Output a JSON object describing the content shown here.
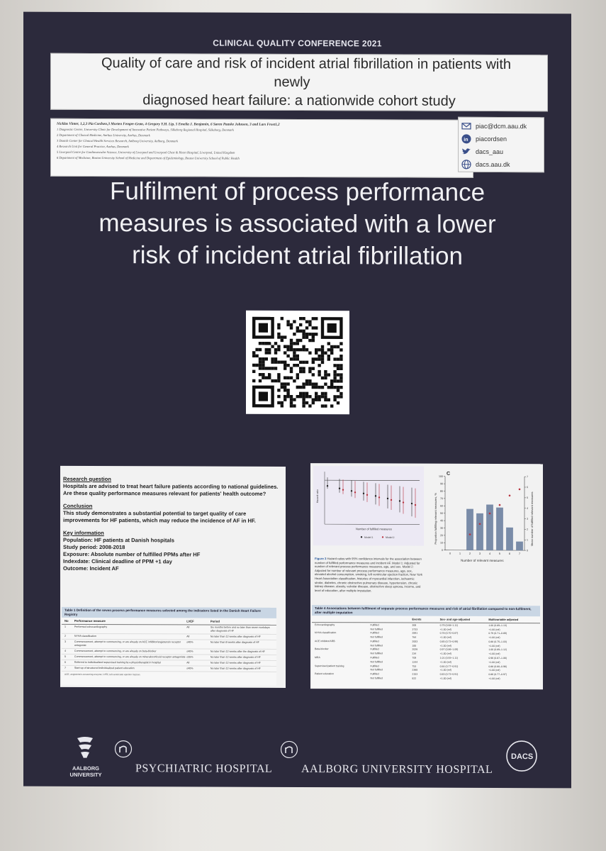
{
  "poster": {
    "conference": "CLINICAL QUALITY CONFERENCE 2021",
    "title_line1": "Quality of care and risk of incident atrial fibrillation in patients with newly",
    "title_line2": "diagnosed heart failure: a nationwide cohort study",
    "authors": "Nicklas Vinter, 1,2,3 Pia Cordsen,3 Morten Fenger-Grøn, 4 Gregory Y.H. Lip, 5 Emelia J. Benjamin, 6 Søren Paaske Johnsen, 3 and Lars Frost1,2",
    "affiliations": [
      "1 Diagnostic Centre, University Clinic for Development of Innovative Patient Pathways, Silkeborg Regional Hospital, Silkeborg, Denmark",
      "2 Department of Clinical Medicine, Aarhus University, Aarhus, Denmark",
      "3 Danish Center for Clinical Health Services Research, Aalborg University, Aalborg, Denmark",
      "4 Research Unit for General Practice, Aarhus, Denmark",
      "5 Liverpool Centre for Cardiovascular Science, University of Liverpool and Liverpool Chest & Heart Hospital, Liverpool, United Kingdom",
      "6 Department of Medicine, Boston University School of Medicine and Department of Epidemiology, Boston University School of Public Health"
    ],
    "contacts": [
      {
        "icon": "email-icon",
        "text": "piac@dcm.aau.dk"
      },
      {
        "icon": "linkedin-icon",
        "text": "piacordsen"
      },
      {
        "icon": "twitter-icon",
        "text": "dacs_aau"
      },
      {
        "icon": "globe-icon",
        "text": "dacs.aau.dk"
      }
    ],
    "main_claim": [
      "Fulfilment of process performance",
      "measures is associated with a lower",
      "risk of incident atrial fibrillation"
    ],
    "left_panel": {
      "research_question_heading": "Research question",
      "research_question": "Hospitals are advised to treat heart failure patients according to national guidelines. Are these quality performance measures relevant for patients' health outcome?",
      "conclusion_heading": "Conclusion",
      "conclusion": "This study demonstrates a substantial potential to target quality of care improvements for HF patients, which may reduce the incidence of AF in HF.",
      "key_heading": "Key information",
      "key_items": [
        "Population: HF patients at Danish hospitals",
        "Study period: 2008-2018",
        "Exposure: Absolute number of fulfilled PPMs after HF",
        "Indexdate: Clinical deadline of PPM +1 day",
        "Outcome: Incident AF"
      ],
      "table1": {
        "title": "Table 1   Definition of the seven process performance measures selected among the indicators listed in the Danish Heart Failure Registry",
        "columns": [
          "No",
          "Performance measure",
          "LVEF",
          "Period"
        ],
        "rows": [
          [
            "1",
            "Performed echocardiography",
            "All",
            "Six months before and no later than seven workdays after diagnosis of HF"
          ],
          [
            "2",
            "NYHA classification",
            "All",
            "No later than 12 weeks after diagnosis of HF"
          ],
          [
            "3",
            "Commencement, attempt to commencing, or are already on ACE inhibitor/angiotensin receptor antagonist",
            "≤40%",
            "No later than 8 weeks after diagnosis of HF"
          ],
          [
            "4",
            "Commencement, attempt to commencing, or are already on beta-blocker",
            "≤40%",
            "No later than 12 weeks after the diagnosis of HF"
          ],
          [
            "5",
            "Commencement, attempt to commencing, or are already on mineralocorticoid receptor antagonists",
            "≤35%",
            "No later than 12 weeks after diagnosis of HF"
          ],
          [
            "6",
            "Referred to individualized supervised training by a physiotherapist in hospital",
            "All",
            "No later than 12 weeks after diagnosis of HF"
          ],
          [
            "7",
            "Start-up of structured individualized patient education",
            "≤40%",
            "No later than 12 weeks after diagnosis of HF"
          ]
        ],
        "footnote": "ACE, angiotensin-converting enzyme; LVEF, left ventricular ejection fraction."
      }
    },
    "right_panel": {
      "figure_caption_label": "Figure 3",
      "figure_caption": "Hazard ratios with 95% confidence intervals for the association between number of fulfilled performance measures and incident AF. Model 1: Adjusted for number of relevant process performance measures, age, and sex. Model 2: Adjusted for number of relevant process performance measures, age, sex, elevated alcohol consumption, smoking, left ventricular ejection fraction, New York Heart Association classification, histories of myocardial infarction, ischaemic stroke, diabetes, chronic obstructive pulmonary disease, hypertension, chronic kidney disease, obesity, valvular disease, obstructive sleep apnoea, income, and level of education, after multiple imputation.",
      "forest_plot": {
        "xlabel": "Number of fulfilled measures",
        "ylabel": "Hazard ratio",
        "legend": [
          "Model 1",
          "Model 2"
        ]
      },
      "panel_c_label": "C",
      "table2": {
        "title": "Table 4   Associations between fulfilment of separate process performance measures and risk of atrial fibrillation compared to non-fulfilment, after multiple imputation",
        "columns": [
          "",
          "",
          "Events",
          "Sex- and age-adjusted",
          "Multivariable adjusted"
        ],
        "rows": [
          [
            "Echocardiography",
            "Fulfilled",
            "308",
            "0.79 (0.68–1.11)",
            "1.00 (0.89–1.13)"
          ],
          [
            "",
            "Not fulfilled",
            "3733",
            "+1.00 (ref)",
            "+1.00 (ref)"
          ],
          [
            "NYHA classification",
            "Fulfilled",
            "2891",
            "0.78 (0.70–0.87)",
            "0.79 (0.71–0.89)"
          ],
          [
            "",
            "Not fulfilled",
            "764",
            "+1.00 (ref)",
            "+1.00 (ref)"
          ],
          [
            "ACE inhibitor/ARB",
            "Fulfilled",
            "2003",
            "0.85 (0.73–0.99)",
            "0.88 (0.75–1.03)"
          ],
          [
            "",
            "Not fulfilled",
            "185",
            "+1.00 (ref)",
            "+1.00 (ref)"
          ],
          [
            "Beta-blocker",
            "Fulfilled",
            "2026",
            "0.97 (0.86–1.09)",
            "1.00 (0.89–1.12)"
          ],
          [
            "",
            "Not fulfilled",
            "234",
            "+1.00 (ref)",
            "+1.00 (ref)"
          ],
          [
            "MRA",
            "Fulfilled",
            "709",
            "1.01 (0.93–1.11)",
            "0.96 (0.87–1.06)"
          ],
          [
            "",
            "Not fulfilled",
            "1244",
            "+1.00 (ref)",
            "+1.00 (ref)"
          ],
          [
            "Supervised patient training",
            "Fulfilled",
            "753",
            "0.84 (0.77–0.91)",
            "0.88 (0.80–0.96)"
          ],
          [
            "",
            "Not fulfilled",
            "2368",
            "+1.00 (ref)",
            "+1.00 (ref)"
          ],
          [
            "Patient education",
            "Fulfilled",
            "2153",
            "0.83 (0.73–0.91)",
            "0.86 (0.77–0.97)"
          ],
          [
            "",
            "Not fulfilled",
            "822",
            "+1.00 (ref)",
            "+1.00 (ref)"
          ]
        ]
      }
    },
    "bar_chart": {
      "xlabel": "Number of relevant measures",
      "ylabel_left": "Proportion fulfilling relevant measures, %",
      "ylabel_right": "Mean number of fulfilled relevant measures"
    },
    "logos": {
      "aalborg_university": [
        "AALBORG",
        "UNIVERSITY"
      ],
      "psychiatric_hospital": "PSYCHIATRIC HOSPITAL",
      "aalborg_university_hospital": "AALBORG UNIVERSITY HOSPITAL",
      "dacs": "DACS"
    }
  },
  "chart_data": [
    {
      "type": "bar",
      "panel": "C",
      "categories": [
        "0",
        "1",
        "2",
        "3",
        "4",
        "5",
        "6",
        "7"
      ],
      "series": [
        {
          "values": [
            0,
            0,
            56,
            50,
            62,
            58,
            31,
            12
          ]
        },
        {
          "values": [
            null,
            null,
            1.5,
            2.5,
            3.5,
            4.3,
            5.2,
            5.8
          ]
        }
      ],
      "xlabel": "Number of relevant measures",
      "ylabel": "Proportion fulfilling relevant measures, %",
      "ylabel_right": "Mean number of fulfilled relevant measures",
      "ylim": [
        0,
        100
      ],
      "ylim_right": [
        0,
        7
      ],
      "yticks": [
        0,
        10,
        20,
        30,
        40,
        50,
        60,
        70,
        80,
        90,
        100
      ],
      "yticks_right": [
        0,
        1,
        2,
        3,
        4,
        5,
        6,
        7
      ]
    }
  ],
  "colors": {
    "poster_bg": "#2c2a3c",
    "panel_bg": "#f2f2f2",
    "bar_fill": "#7a8ca8",
    "dot_red": "#b8333f",
    "table_header": "#c9d6e4"
  }
}
